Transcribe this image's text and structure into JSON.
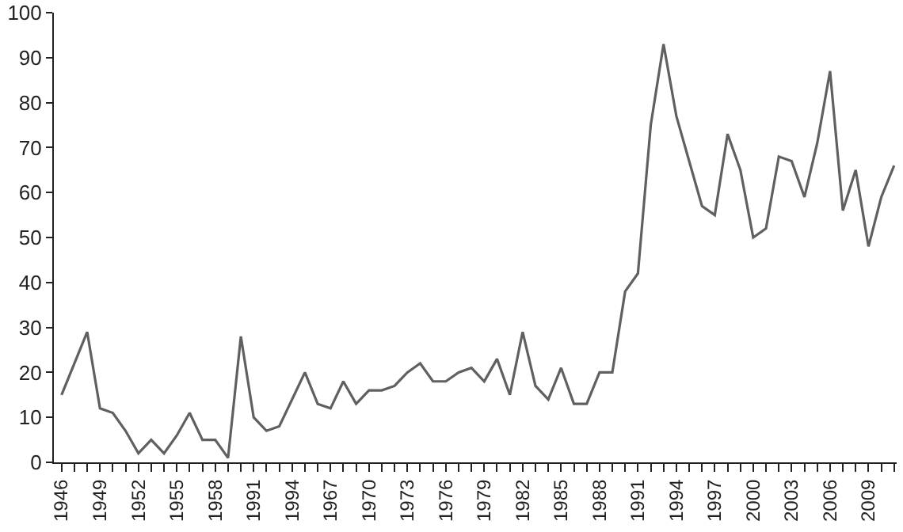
{
  "chart_data": {
    "type": "line",
    "categories": [
      "1946",
      null,
      null,
      "1949",
      null,
      null,
      "1952",
      null,
      null,
      "1955",
      null,
      null,
      "1958",
      null,
      null,
      "1991",
      null,
      null,
      "1994",
      null,
      null,
      "1967",
      null,
      null,
      "1970",
      null,
      null,
      "1973",
      null,
      null,
      "1976",
      null,
      null,
      "1979",
      null,
      null,
      "1982",
      null,
      null,
      "1985",
      null,
      null,
      "1988",
      null,
      null,
      "1991",
      null,
      null,
      "1994",
      null,
      null,
      "1997",
      null,
      null,
      "2000",
      null,
      null,
      "2003",
      null,
      null,
      "2006",
      null,
      null,
      "2009",
      null,
      null
    ],
    "series": [
      {
        "color": "#606060",
        "values": [
          15,
          22,
          29,
          12,
          11,
          7,
          2,
          5,
          2,
          6,
          11,
          5,
          5,
          1,
          28,
          10,
          7,
          8,
          14,
          20,
          13,
          12,
          18,
          13,
          16,
          16,
          17,
          20,
          22,
          18,
          18,
          20,
          21,
          18,
          23,
          15,
          29,
          17,
          14,
          21,
          13,
          13,
          20,
          20,
          38,
          42,
          75,
          93,
          77,
          67,
          57,
          55,
          73,
          65,
          50,
          52,
          68,
          67,
          59,
          71,
          87,
          56,
          65,
          48,
          59,
          66
        ]
      }
    ],
    "ylim": [
      0,
      100
    ],
    "yticks": [
      0,
      10,
      20,
      30,
      40,
      50,
      60,
      70,
      80,
      90,
      100
    ],
    "grid": false,
    "marker": "none",
    "line_style": "solid"
  }
}
